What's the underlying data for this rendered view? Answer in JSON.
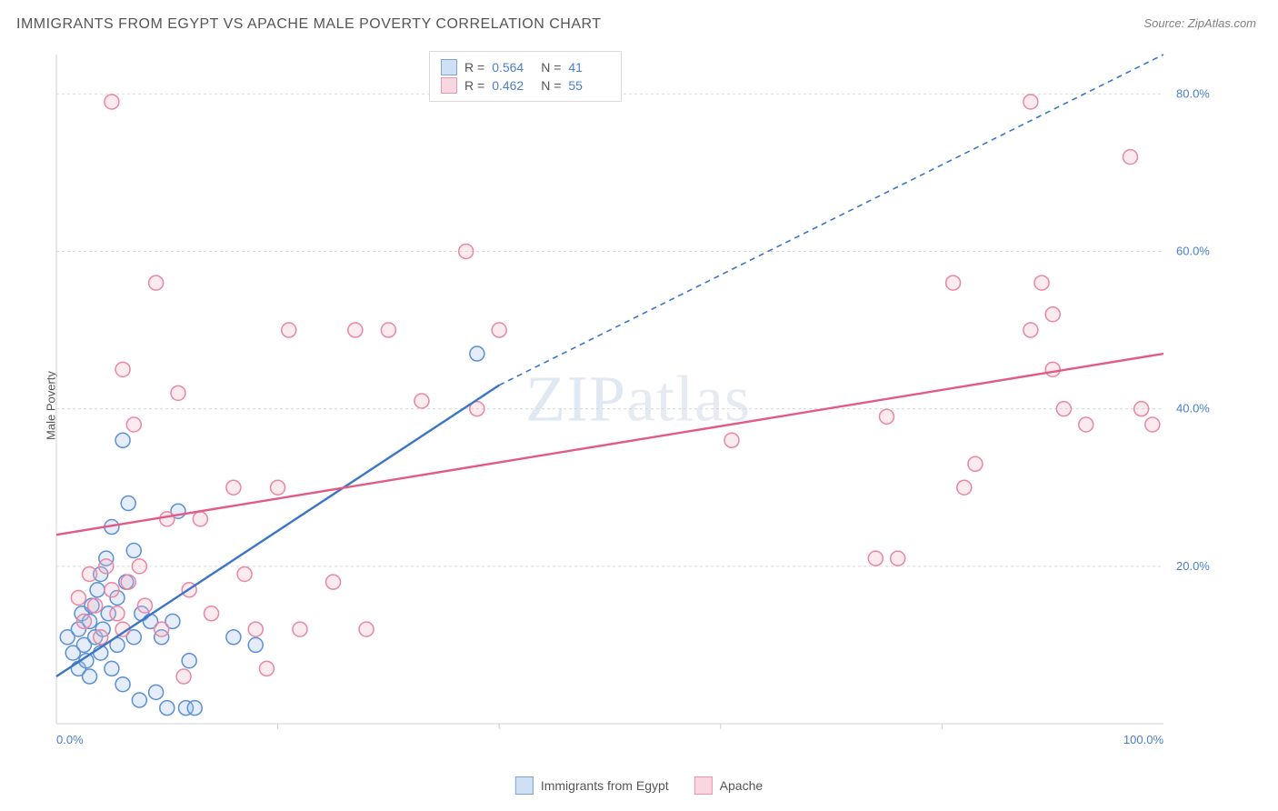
{
  "title": "IMMIGRANTS FROM EGYPT VS APACHE MALE POVERTY CORRELATION CHART",
  "source": "Source: ZipAtlas.com",
  "y_axis_label": "Male Poverty",
  "watermark": "ZIPatlas",
  "chart": {
    "type": "scatter",
    "xlim": [
      0,
      100
    ],
    "ylim": [
      0,
      85
    ],
    "x_ticks": [
      0,
      100
    ],
    "x_tick_labels": [
      "0.0%",
      "100.0%"
    ],
    "y_ticks": [
      20,
      40,
      60,
      80
    ],
    "y_tick_labels": [
      "20.0%",
      "40.0%",
      "60.0%",
      "80.0%"
    ],
    "grid_color": "#d9d9d9",
    "grid_dash": "3,3",
    "axis_color": "#d0d0d0",
    "plot_bg": "#ffffff",
    "tick_label_color": "#4a7fce",
    "marker_radius": 8,
    "marker_stroke_width": 1.5,
    "marker_fill_opacity": 0.28,
    "series": [
      {
        "name": "Immigrants from Egypt",
        "color_stroke": "#5b8fd6",
        "color_fill": "#9fbfe8",
        "swatch_fill": "#cfe0f4",
        "swatch_border": "#7aa6dd",
        "trend": {
          "x1": 0,
          "y1": 6,
          "x2": 40,
          "y2": 43,
          "x2_ext": 100,
          "y2_ext": 98,
          "color": "#3b76c6",
          "width": 2.4,
          "dash_after_x": 40
        },
        "stats": {
          "R": "0.564",
          "N": "41"
        },
        "points": [
          [
            1,
            11
          ],
          [
            1.5,
            9
          ],
          [
            2,
            12
          ],
          [
            2,
            7
          ],
          [
            2.3,
            14
          ],
          [
            2.5,
            10
          ],
          [
            2.7,
            8
          ],
          [
            3,
            13
          ],
          [
            3,
            6
          ],
          [
            3.2,
            15
          ],
          [
            3.5,
            11
          ],
          [
            3.7,
            17
          ],
          [
            4,
            9
          ],
          [
            4,
            19
          ],
          [
            4.2,
            12
          ],
          [
            4.5,
            21
          ],
          [
            4.7,
            14
          ],
          [
            5,
            25
          ],
          [
            5,
            7
          ],
          [
            5.5,
            10
          ],
          [
            5.5,
            16
          ],
          [
            6,
            36
          ],
          [
            6,
            5
          ],
          [
            6.3,
            18
          ],
          [
            6.5,
            28
          ],
          [
            7,
            11
          ],
          [
            7,
            22
          ],
          [
            7.5,
            3
          ],
          [
            7.7,
            14
          ],
          [
            8.5,
            13
          ],
          [
            9,
            4
          ],
          [
            9.5,
            11
          ],
          [
            10,
            2
          ],
          [
            10.5,
            13
          ],
          [
            11,
            27
          ],
          [
            11.7,
            2
          ],
          [
            12,
            8
          ],
          [
            12.5,
            2
          ],
          [
            16,
            11
          ],
          [
            18,
            10
          ],
          [
            38,
            47
          ]
        ]
      },
      {
        "name": "Apache",
        "color_stroke": "#e986a3",
        "color_fill": "#f2b6c6",
        "swatch_fill": "#f9d7e0",
        "swatch_border": "#eb94ad",
        "trend": {
          "x1": 0,
          "y1": 24,
          "x2": 100,
          "y2": 47,
          "color": "#e35a85",
          "width": 2.4
        },
        "stats": {
          "R": "0.462",
          "N": "55"
        },
        "points": [
          [
            2,
            16
          ],
          [
            2.5,
            13
          ],
          [
            3,
            19
          ],
          [
            3.5,
            15
          ],
          [
            4,
            11
          ],
          [
            4.5,
            20
          ],
          [
            5,
            79
          ],
          [
            5,
            17
          ],
          [
            5.5,
            14
          ],
          [
            6,
            45
          ],
          [
            6,
            12
          ],
          [
            6.5,
            18
          ],
          [
            7,
            38
          ],
          [
            7.5,
            20
          ],
          [
            8,
            15
          ],
          [
            9,
            56
          ],
          [
            9.5,
            12
          ],
          [
            10,
            26
          ],
          [
            11,
            42
          ],
          [
            11.5,
            6
          ],
          [
            12,
            17
          ],
          [
            13,
            26
          ],
          [
            14,
            14
          ],
          [
            16,
            30
          ],
          [
            17,
            19
          ],
          [
            18,
            12
          ],
          [
            19,
            7
          ],
          [
            20,
            30
          ],
          [
            21,
            50
          ],
          [
            22,
            12
          ],
          [
            25,
            18
          ],
          [
            27,
            50
          ],
          [
            28,
            12
          ],
          [
            30,
            50
          ],
          [
            33,
            41
          ],
          [
            37,
            60
          ],
          [
            38,
            40
          ],
          [
            40,
            50
          ],
          [
            61,
            36
          ],
          [
            74,
            21
          ],
          [
            75,
            39
          ],
          [
            76,
            21
          ],
          [
            81,
            56
          ],
          [
            82,
            30
          ],
          [
            83,
            33
          ],
          [
            88,
            50
          ],
          [
            88,
            79
          ],
          [
            89,
            56
          ],
          [
            90,
            45
          ],
          [
            90,
            52
          ],
          [
            91,
            40
          ],
          [
            93,
            38
          ],
          [
            97,
            72
          ],
          [
            98,
            40
          ],
          [
            99,
            38
          ]
        ]
      }
    ]
  },
  "stats_box": {
    "rows": [
      {
        "swatch_series": 0,
        "r_label": "R =",
        "n_label": "N ="
      },
      {
        "swatch_series": 1,
        "r_label": "R =",
        "n_label": "N ="
      }
    ]
  },
  "legend": {
    "items": [
      {
        "series": 0
      },
      {
        "series": 1
      }
    ]
  }
}
